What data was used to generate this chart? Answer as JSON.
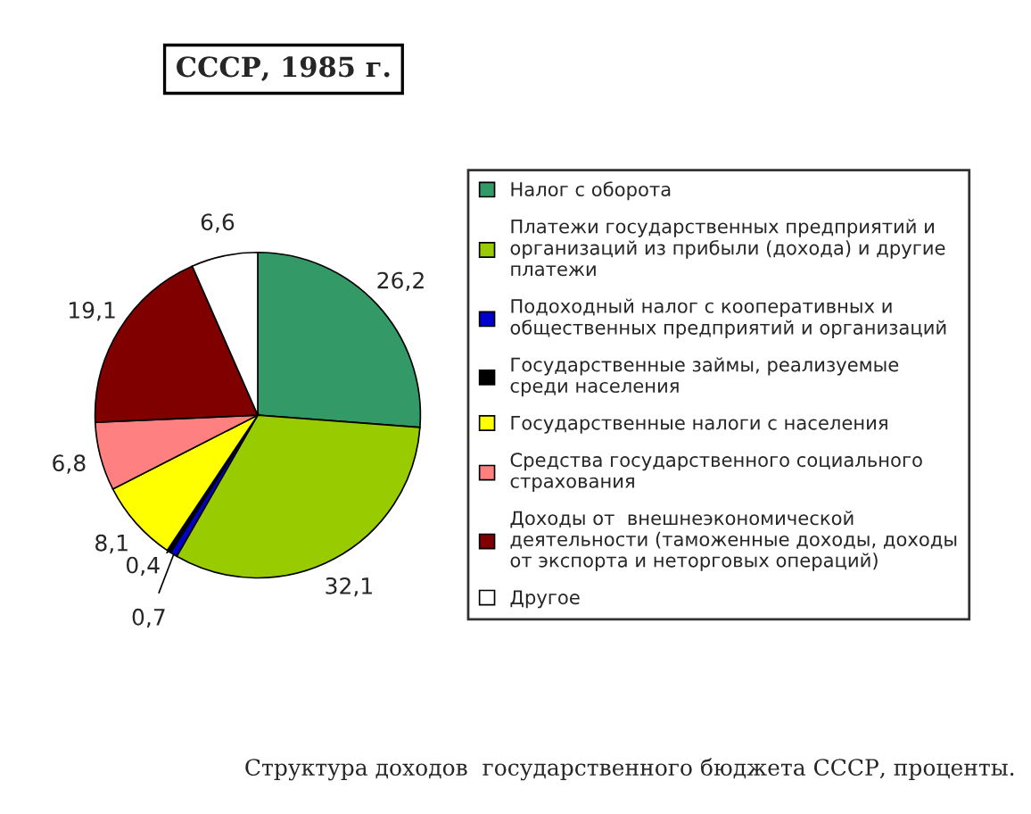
{
  "chart_data": {
    "type": "pie",
    "title": "СССР, 1985 г.",
    "categories": [
      "Налог с оборота",
      "Платежи государственных предприятий и\nорганизаций из прибыли (дохода) и другие\nплатежи",
      "Подоходный налог с кооперативных и\nобщественных предприятий и организаций",
      "Государственные займы, реализуемые\nсреди населения",
      "Государственные налоги с населения",
      "Средства государственного социального\nстрахования",
      "Доходы от  внешнеэкономической\nдеятельности (таможенные доходы, доходы\nот экспорта и неторговых операций)",
      "Другое"
    ],
    "values": [
      26.2,
      32.1,
      0.7,
      0.4,
      8.1,
      6.8,
      19.1,
      6.6
    ],
    "value_labels": [
      "26,2",
      "32,1",
      "0,7",
      "0,4",
      "8,1",
      "6,8",
      "19,1",
      "6,6"
    ],
    "colors": [
      "#339966",
      "#99cc00",
      "#0000cc",
      "#000000",
      "#ffff00",
      "#ff8080",
      "#800000",
      "#ffffff"
    ],
    "legend": "right",
    "annotations": [
      "Структура доходов  государственного бюджета СССР, проценты."
    ]
  }
}
